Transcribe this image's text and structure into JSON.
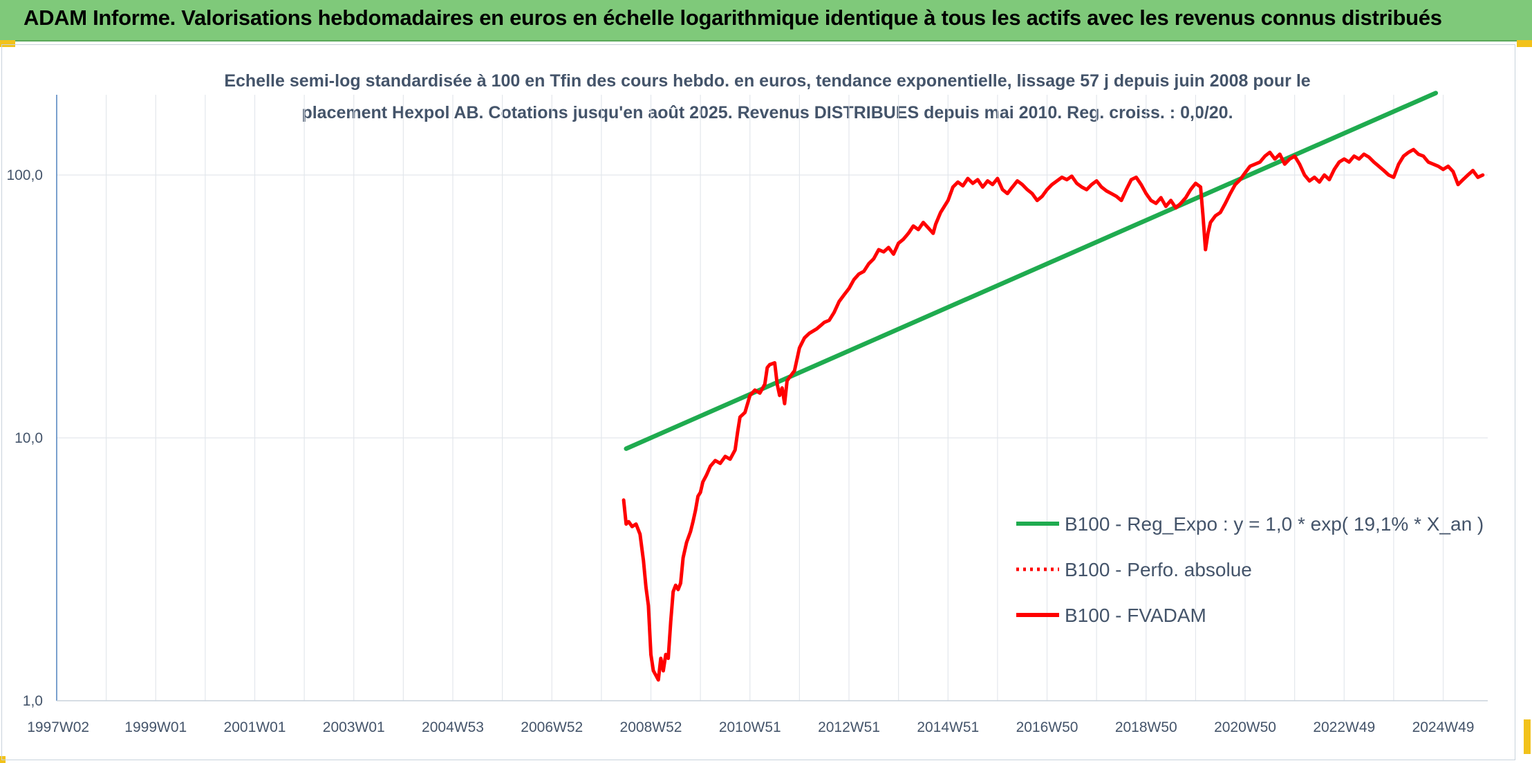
{
  "header": {
    "title": "ADAM Informe. Valorisations hebdomadaires en euros en échelle logarithmique identique à tous les actifs avec les revenus connus distribués"
  },
  "chart_data": {
    "type": "line",
    "title": "Echelle semi-log standardisée à 100 en Tfin des cours hebdo. en euros, tendance exponentielle, lissage 57 j depuis juin 2008 pour le placement Hexpol AB. Cotations jusqu'en août 2025. Revenus DISTRIBUES depuis mai 2010. Reg. croiss. : 0,0/20.",
    "title_lines": [
      "Echelle semi-log standardisée à 100 en Tfin des cours hebdo. en euros, tendance exponentielle, lissage 57 j depuis juin 2008 pour le",
      "placement Hexpol AB. Cotations jusqu'en août 2025. Revenus DISTRIBUES depuis mai 2010. Reg. croiss. : 0,0/20."
    ],
    "y_scale": "log",
    "ylim": [
      1,
      200
    ],
    "xlim": [
      1997.0,
      2025.9
    ],
    "y_ticks": [
      {
        "value": 1,
        "label": "1,0"
      },
      {
        "value": 10,
        "label": "10,0"
      },
      {
        "value": 100,
        "label": "100,0"
      }
    ],
    "x_ticks": [
      {
        "value": 1997.03,
        "label": "1997W02"
      },
      {
        "value": 1999.0,
        "label": "1999W01"
      },
      {
        "value": 2001.0,
        "label": "2001W01"
      },
      {
        "value": 2003.0,
        "label": "2003W01"
      },
      {
        "value": 2005.0,
        "label": "2004W53"
      },
      {
        "value": 2007.0,
        "label": "2006W52"
      },
      {
        "value": 2009.0,
        "label": "2008W52"
      },
      {
        "value": 2011.0,
        "label": "2010W51"
      },
      {
        "value": 2013.0,
        "label": "2012W51"
      },
      {
        "value": 2015.0,
        "label": "2014W51"
      },
      {
        "value": 2017.0,
        "label": "2016W50"
      },
      {
        "value": 2019.0,
        "label": "2018W50"
      },
      {
        "value": 2021.0,
        "label": "2020W50"
      },
      {
        "value": 2023.0,
        "label": "2022W49"
      },
      {
        "value": 2025.0,
        "label": "2024W49"
      }
    ],
    "grid": {
      "vertical": true,
      "horizontal": true
    },
    "legend_position": "bottom-right",
    "series": [
      {
        "name": "B100 - Reg_Expo : y = 1,0 * exp( 19,1% *  X_an )",
        "color": "#1fab4f",
        "style": "solid",
        "points": [
          [
            2008.5,
            9.1
          ],
          [
            2024.85,
            205
          ]
        ]
      },
      {
        "name": "B100 - Perfo. absolue",
        "color": "#ff0000",
        "style": "dotted",
        "points": []
      },
      {
        "name": "B100 - FVADAM",
        "color": "#ff0000",
        "style": "solid",
        "points": [
          [
            2008.45,
            5.8
          ],
          [
            2008.5,
            4.7
          ],
          [
            2008.55,
            4.8
          ],
          [
            2008.62,
            4.6
          ],
          [
            2008.7,
            4.7
          ],
          [
            2008.78,
            4.3
          ],
          [
            2008.85,
            3.4
          ],
          [
            2008.9,
            2.7
          ],
          [
            2008.95,
            2.3
          ],
          [
            2009.0,
            1.5
          ],
          [
            2009.05,
            1.3
          ],
          [
            2009.1,
            1.25
          ],
          [
            2009.15,
            1.2
          ],
          [
            2009.2,
            1.45
          ],
          [
            2009.25,
            1.3
          ],
          [
            2009.3,
            1.5
          ],
          [
            2009.35,
            1.45
          ],
          [
            2009.4,
            2.0
          ],
          [
            2009.45,
            2.6
          ],
          [
            2009.5,
            2.75
          ],
          [
            2009.55,
            2.65
          ],
          [
            2009.6,
            2.8
          ],
          [
            2009.65,
            3.5
          ],
          [
            2009.72,
            4.0
          ],
          [
            2009.8,
            4.4
          ],
          [
            2009.85,
            4.8
          ],
          [
            2009.9,
            5.3
          ],
          [
            2009.95,
            6.0
          ],
          [
            2010.0,
            6.2
          ],
          [
            2010.05,
            6.8
          ],
          [
            2010.12,
            7.2
          ],
          [
            2010.2,
            7.8
          ],
          [
            2010.3,
            8.2
          ],
          [
            2010.4,
            8.0
          ],
          [
            2010.5,
            8.5
          ],
          [
            2010.6,
            8.3
          ],
          [
            2010.7,
            9.0
          ],
          [
            2010.75,
            10.5
          ],
          [
            2010.8,
            12.0
          ],
          [
            2010.9,
            12.5
          ],
          [
            2011.0,
            14.5
          ],
          [
            2011.1,
            15.2
          ],
          [
            2011.2,
            14.8
          ],
          [
            2011.3,
            16.0
          ],
          [
            2011.35,
            18.5
          ],
          [
            2011.4,
            19.0
          ],
          [
            2011.5,
            19.3
          ],
          [
            2011.55,
            16.0
          ],
          [
            2011.6,
            14.5
          ],
          [
            2011.65,
            15.5
          ],
          [
            2011.7,
            13.5
          ],
          [
            2011.75,
            16.5
          ],
          [
            2011.8,
            17.0
          ],
          [
            2011.9,
            18.0
          ],
          [
            2012.0,
            22.0
          ],
          [
            2012.1,
            24.0
          ],
          [
            2012.2,
            25.0
          ],
          [
            2012.35,
            26.0
          ],
          [
            2012.5,
            27.5
          ],
          [
            2012.6,
            28.0
          ],
          [
            2012.7,
            30.0
          ],
          [
            2012.8,
            33.0
          ],
          [
            2012.9,
            35.0
          ],
          [
            2013.0,
            37.0
          ],
          [
            2013.1,
            40.0
          ],
          [
            2013.2,
            42.0
          ],
          [
            2013.3,
            43.0
          ],
          [
            2013.4,
            46.0
          ],
          [
            2013.5,
            48.0
          ],
          [
            2013.6,
            52.0
          ],
          [
            2013.7,
            51.0
          ],
          [
            2013.8,
            53.0
          ],
          [
            2013.9,
            50.0
          ],
          [
            2014.0,
            55.0
          ],
          [
            2014.1,
            57.0
          ],
          [
            2014.2,
            60.0
          ],
          [
            2014.3,
            64.0
          ],
          [
            2014.4,
            62.0
          ],
          [
            2014.5,
            66.0
          ],
          [
            2014.6,
            63.0
          ],
          [
            2014.7,
            60.0
          ],
          [
            2014.75,
            65.0
          ],
          [
            2014.85,
            72.0
          ],
          [
            2015.0,
            80.0
          ],
          [
            2015.1,
            90.0
          ],
          [
            2015.2,
            94.0
          ],
          [
            2015.3,
            91.0
          ],
          [
            2015.4,
            97.0
          ],
          [
            2015.5,
            93.0
          ],
          [
            2015.6,
            96.0
          ],
          [
            2015.7,
            90.0
          ],
          [
            2015.8,
            95.0
          ],
          [
            2015.9,
            92.0
          ],
          [
            2016.0,
            97.0
          ],
          [
            2016.1,
            88.0
          ],
          [
            2016.2,
            85.0
          ],
          [
            2016.3,
            90.0
          ],
          [
            2016.4,
            95.0
          ],
          [
            2016.5,
            92.0
          ],
          [
            2016.6,
            88.0
          ],
          [
            2016.7,
            85.0
          ],
          [
            2016.8,
            80.0
          ],
          [
            2016.9,
            83.0
          ],
          [
            2017.0,
            88.0
          ],
          [
            2017.1,
            92.0
          ],
          [
            2017.2,
            95.0
          ],
          [
            2017.3,
            98.0
          ],
          [
            2017.4,
            96.0
          ],
          [
            2017.5,
            99.0
          ],
          [
            2017.6,
            93.0
          ],
          [
            2017.7,
            90.0
          ],
          [
            2017.8,
            88.0
          ],
          [
            2017.9,
            92.0
          ],
          [
            2018.0,
            95.0
          ],
          [
            2018.1,
            90.0
          ],
          [
            2018.2,
            87.0
          ],
          [
            2018.3,
            85.0
          ],
          [
            2018.4,
            83.0
          ],
          [
            2018.5,
            80.0
          ],
          [
            2018.6,
            88.0
          ],
          [
            2018.7,
            96.0
          ],
          [
            2018.8,
            98.0
          ],
          [
            2018.9,
            92.0
          ],
          [
            2019.0,
            85.0
          ],
          [
            2019.1,
            80.0
          ],
          [
            2019.2,
            78.0
          ],
          [
            2019.3,
            82.0
          ],
          [
            2019.4,
            76.0
          ],
          [
            2019.5,
            80.0
          ],
          [
            2019.6,
            75.0
          ],
          [
            2019.7,
            78.0
          ],
          [
            2019.8,
            82.0
          ],
          [
            2019.9,
            88.0
          ],
          [
            2020.0,
            93.0
          ],
          [
            2020.1,
            90.0
          ],
          [
            2020.15,
            70.0
          ],
          [
            2020.2,
            52.0
          ],
          [
            2020.25,
            60.0
          ],
          [
            2020.3,
            66.0
          ],
          [
            2020.4,
            70.0
          ],
          [
            2020.5,
            72.0
          ],
          [
            2020.6,
            78.0
          ],
          [
            2020.7,
            85.0
          ],
          [
            2020.8,
            92.0
          ],
          [
            2020.9,
            96.0
          ],
          [
            2021.0,
            102.0
          ],
          [
            2021.1,
            108.0
          ],
          [
            2021.2,
            110.0
          ],
          [
            2021.3,
            112.0
          ],
          [
            2021.4,
            118.0
          ],
          [
            2021.5,
            122.0
          ],
          [
            2021.6,
            115.0
          ],
          [
            2021.7,
            120.0
          ],
          [
            2021.8,
            110.0
          ],
          [
            2021.9,
            115.0
          ],
          [
            2022.0,
            118.0
          ],
          [
            2022.1,
            110.0
          ],
          [
            2022.2,
            100.0
          ],
          [
            2022.3,
            95.0
          ],
          [
            2022.4,
            98.0
          ],
          [
            2022.5,
            94.0
          ],
          [
            2022.6,
            100.0
          ],
          [
            2022.7,
            96.0
          ],
          [
            2022.8,
            105.0
          ],
          [
            2022.9,
            112.0
          ],
          [
            2023.0,
            115.0
          ],
          [
            2023.1,
            112.0
          ],
          [
            2023.2,
            118.0
          ],
          [
            2023.3,
            115.0
          ],
          [
            2023.4,
            120.0
          ],
          [
            2023.5,
            117.0
          ],
          [
            2023.6,
            112.0
          ],
          [
            2023.7,
            108.0
          ],
          [
            2023.8,
            104.0
          ],
          [
            2023.9,
            100.0
          ],
          [
            2024.0,
            98.0
          ],
          [
            2024.1,
            110.0
          ],
          [
            2024.2,
            118.0
          ],
          [
            2024.3,
            122.0
          ],
          [
            2024.4,
            125.0
          ],
          [
            2024.5,
            120.0
          ],
          [
            2024.6,
            118.0
          ],
          [
            2024.7,
            112.0
          ],
          [
            2024.8,
            110.0
          ],
          [
            2024.9,
            108.0
          ],
          [
            2025.0,
            105.0
          ],
          [
            2025.1,
            108.0
          ],
          [
            2025.2,
            103.0
          ],
          [
            2025.3,
            92.0
          ],
          [
            2025.4,
            96.0
          ],
          [
            2025.5,
            100.0
          ],
          [
            2025.6,
            104.0
          ],
          [
            2025.7,
            98.0
          ],
          [
            2025.8,
            100.0
          ]
        ]
      }
    ]
  }
}
